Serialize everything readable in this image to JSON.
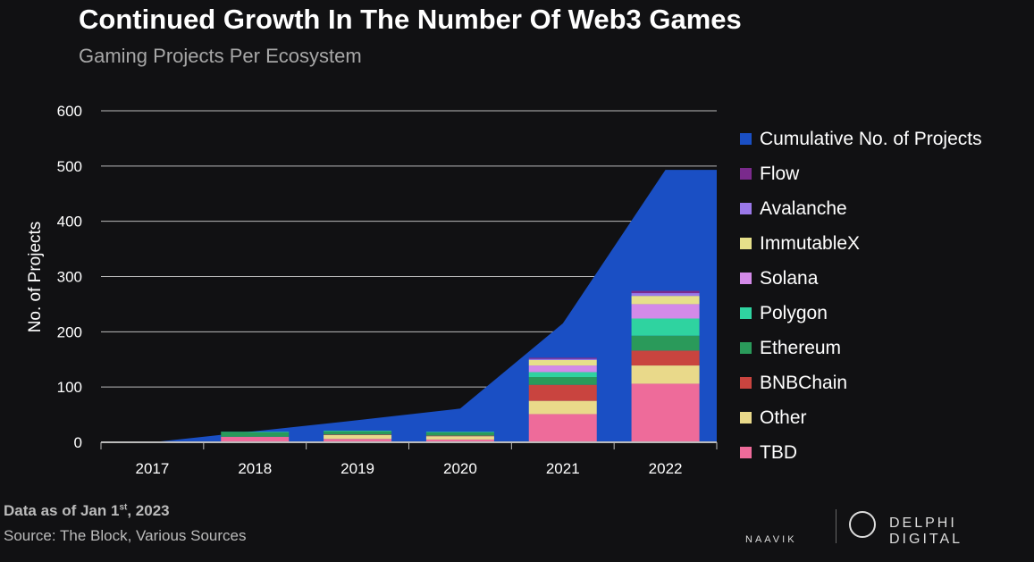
{
  "chart_data": {
    "type": "bar",
    "title": "Continued Growth In The Number Of Web3 Games",
    "subtitle": "Gaming Projects Per Ecosystem",
    "ylabel": "No. of Projects",
    "xlabel": "",
    "ylim": [
      0,
      600
    ],
    "yticks": [
      0,
      100,
      200,
      300,
      400,
      500,
      600
    ],
    "categories": [
      "2017",
      "2018",
      "2019",
      "2020",
      "2021",
      "2022"
    ],
    "grid": true,
    "legend_placement": "right",
    "area": {
      "name": "Cumulative No. of Projects",
      "color": "#1a4fc4",
      "values": [
        0,
        20,
        40,
        61,
        215,
        493
      ]
    },
    "series": [
      {
        "name": "TBD",
        "color": "#ee6b9a",
        "values": [
          0,
          10,
          6,
          5,
          51,
          106
        ]
      },
      {
        "name": "Other",
        "color": "#e9d98a",
        "values": [
          0,
          0,
          7,
          6,
          24,
          33
        ]
      },
      {
        "name": "BNBChain",
        "color": "#c9443f",
        "values": [
          0,
          0,
          1,
          1,
          29,
          27
        ]
      },
      {
        "name": "Ethereum",
        "color": "#2a9a5a",
        "values": [
          0,
          8,
          6,
          6,
          14,
          27
        ]
      },
      {
        "name": "Polygon",
        "color": "#2fd3a0",
        "values": [
          0,
          1,
          1,
          1,
          9,
          31
        ]
      },
      {
        "name": "Solana",
        "color": "#d38ae8",
        "values": [
          0,
          0,
          0,
          0,
          12,
          26
        ]
      },
      {
        "name": "ImmutableX",
        "color": "#e6e08a",
        "values": [
          0,
          0,
          0,
          0,
          10,
          15
        ]
      },
      {
        "name": "Avalanche",
        "color": "#9a78e8",
        "values": [
          0,
          0,
          0,
          0,
          2,
          5
        ]
      },
      {
        "name": "Flow",
        "color": "#7a2a8c",
        "values": [
          0,
          0,
          0,
          0,
          2,
          4
        ]
      }
    ]
  },
  "footer": {
    "date_prefix": "Data as of Jan 1",
    "date_sup": "st",
    "date_suffix": ", 2023",
    "source": "Source: The Block, Various Sources"
  },
  "logos": {
    "naavik": "NAAVIK",
    "delphi": "DELPHI DIGITAL"
  }
}
